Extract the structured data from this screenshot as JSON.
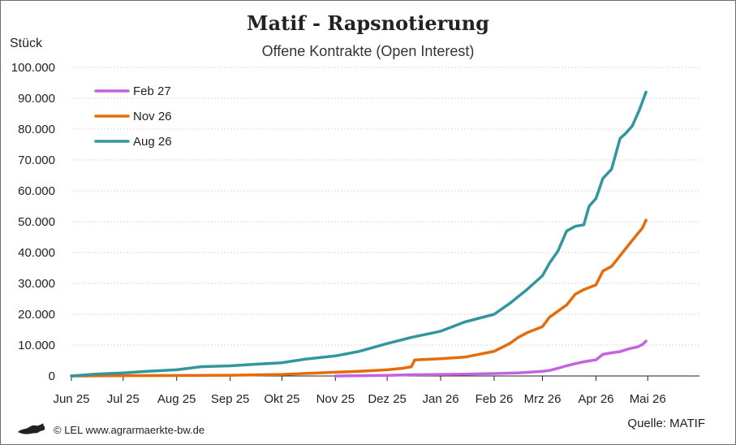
{
  "chart_data": {
    "type": "line",
    "title": "Matif - Rapsnotierung",
    "subtitle": "Offene Kontrakte (Open Interest)",
    "ylabel": "Stück",
    "ylim": [
      0,
      100000
    ],
    "yticks": [
      0,
      10000,
      20000,
      30000,
      40000,
      50000,
      60000,
      70000,
      80000,
      90000,
      100000
    ],
    "ytick_labels": [
      "0",
      "10.000",
      "20.000",
      "30.000",
      "40.000",
      "50.000",
      "60.000",
      "70.000",
      "80.000",
      "90.000",
      "100.000"
    ],
    "xlim": [
      "2025-06-01",
      "2026-05-31"
    ],
    "xticks": [
      "2025-06-01",
      "2025-07-01",
      "2025-08-01",
      "2025-09-01",
      "2025-10-01",
      "2025-11-01",
      "2025-12-01",
      "2026-01-01",
      "2026-02-01",
      "2026-03-01",
      "2026-04-01",
      "2026-05-01"
    ],
    "xtick_labels": [
      "Jun 25",
      "Jul 25",
      "Aug 25",
      "Sep 25",
      "Okt 25",
      "Nov 25",
      "Dez 25",
      "Jan 26",
      "Feb 26",
      "Mrz 26",
      "Apr 26",
      "Mai 26"
    ],
    "grid": "horizontal",
    "legend": "top-left",
    "series": [
      {
        "name": "Feb 27",
        "color": "#c264e0",
        "points": [
          [
            "2025-11-01",
            0
          ],
          [
            "2025-12-01",
            200
          ],
          [
            "2025-12-15",
            400
          ],
          [
            "2026-01-01",
            500
          ],
          [
            "2026-01-15",
            600
          ],
          [
            "2026-02-01",
            800
          ],
          [
            "2026-02-15",
            1000
          ],
          [
            "2026-03-01",
            1500
          ],
          [
            "2026-03-05",
            1800
          ],
          [
            "2026-03-10",
            2500
          ],
          [
            "2026-03-15",
            3300
          ],
          [
            "2026-03-20",
            4000
          ],
          [
            "2026-03-25",
            4600
          ],
          [
            "2026-04-01",
            5200
          ],
          [
            "2026-04-05",
            7000
          ],
          [
            "2026-04-10",
            7500
          ],
          [
            "2026-04-15",
            7900
          ],
          [
            "2026-04-20",
            8800
          ],
          [
            "2026-04-25",
            9400
          ],
          [
            "2026-04-28",
            10200
          ],
          [
            "2026-04-30",
            11300
          ]
        ]
      },
      {
        "name": "Nov 26",
        "color": "#e46c0a",
        "points": [
          [
            "2025-06-01",
            0
          ],
          [
            "2025-07-01",
            100
          ],
          [
            "2025-08-01",
            150
          ],
          [
            "2025-09-01",
            250
          ],
          [
            "2025-10-01",
            500
          ],
          [
            "2025-11-01",
            1200
          ],
          [
            "2025-11-15",
            1500
          ],
          [
            "2025-12-01",
            2000
          ],
          [
            "2025-12-10",
            2500
          ],
          [
            "2025-12-15",
            3000
          ],
          [
            "2025-12-17",
            5200
          ],
          [
            "2026-01-01",
            5600
          ],
          [
            "2026-01-15",
            6100
          ],
          [
            "2026-02-01",
            8000
          ],
          [
            "2026-02-10",
            10500
          ],
          [
            "2026-02-15",
            12500
          ],
          [
            "2026-02-20",
            14000
          ],
          [
            "2026-03-01",
            16000
          ],
          [
            "2026-03-05",
            19000
          ],
          [
            "2026-03-10",
            21000
          ],
          [
            "2026-03-15",
            23000
          ],
          [
            "2026-03-20",
            26500
          ],
          [
            "2026-03-25",
            28000
          ],
          [
            "2026-04-01",
            29500
          ],
          [
            "2026-04-05",
            34000
          ],
          [
            "2026-04-10",
            35500
          ],
          [
            "2026-04-15",
            39000
          ],
          [
            "2026-04-20",
            42500
          ],
          [
            "2026-04-25",
            46000
          ],
          [
            "2026-04-28",
            48000
          ],
          [
            "2026-04-30",
            50500
          ]
        ]
      },
      {
        "name": "Aug 26",
        "color": "#31969e",
        "points": [
          [
            "2025-06-01",
            0
          ],
          [
            "2025-06-15",
            600
          ],
          [
            "2025-07-01",
            1000
          ],
          [
            "2025-07-15",
            1500
          ],
          [
            "2025-08-01",
            2000
          ],
          [
            "2025-08-15",
            3000
          ],
          [
            "2025-09-01",
            3300
          ],
          [
            "2025-09-15",
            3800
          ],
          [
            "2025-10-01",
            4300
          ],
          [
            "2025-10-15",
            5500
          ],
          [
            "2025-11-01",
            6500
          ],
          [
            "2025-11-15",
            8000
          ],
          [
            "2025-12-01",
            10500
          ],
          [
            "2025-12-15",
            12500
          ],
          [
            "2026-01-01",
            14500
          ],
          [
            "2026-01-15",
            17500
          ],
          [
            "2026-02-01",
            20000
          ],
          [
            "2026-02-10",
            23500
          ],
          [
            "2026-02-20",
            28000
          ],
          [
            "2026-03-01",
            32500
          ],
          [
            "2026-03-05",
            36500
          ],
          [
            "2026-03-10",
            40500
          ],
          [
            "2026-03-15",
            47000
          ],
          [
            "2026-03-20",
            48500
          ],
          [
            "2026-03-25",
            49000
          ],
          [
            "2026-03-28",
            55000
          ],
          [
            "2026-04-01",
            57500
          ],
          [
            "2026-04-05",
            64000
          ],
          [
            "2026-04-10",
            67000
          ],
          [
            "2026-04-15",
            77000
          ],
          [
            "2026-04-18",
            78500
          ],
          [
            "2026-04-22",
            81000
          ],
          [
            "2026-04-26",
            86000
          ],
          [
            "2026-04-30",
            92000
          ]
        ]
      }
    ]
  },
  "footer": {
    "copyright": "© LEL www.agrarmaerkte-bw.de",
    "source": "Quelle: MATIF"
  },
  "colors": {
    "grid": "#d9d9d9",
    "axis": "#222222"
  }
}
